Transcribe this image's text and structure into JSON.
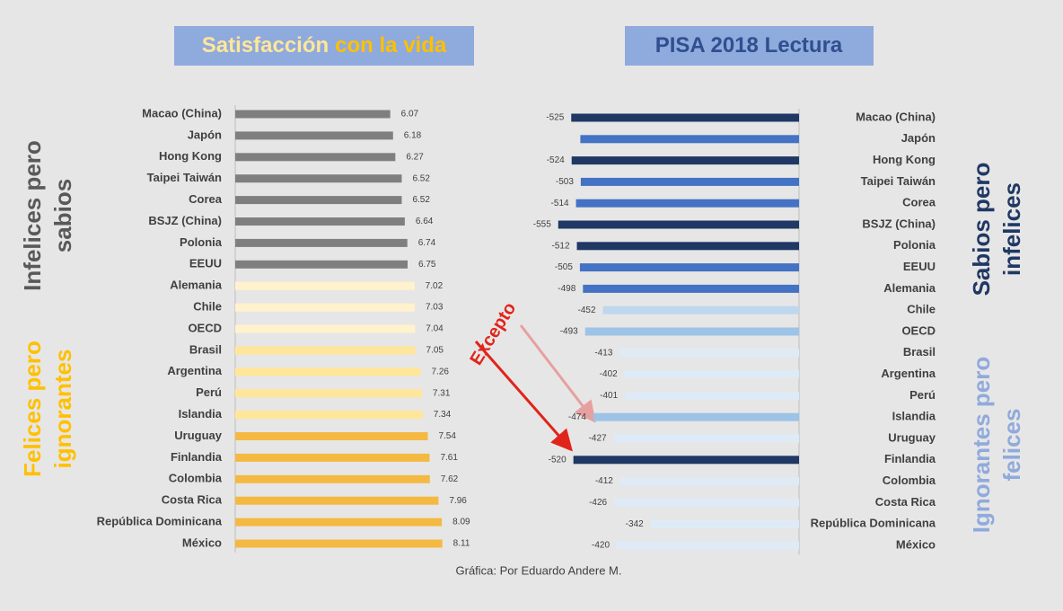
{
  "chart_data": [
    {
      "type": "bar",
      "orientation": "horizontal",
      "title_parts": [
        {
          "text": "Satisfacción",
          "color": "#ffe699"
        },
        {
          "text": "con la vida",
          "color": "#ffc000"
        }
      ],
      "categories": [
        "Macao (China)",
        "Japón",
        "Hong Kong",
        "Taipei Taiwán",
        "Corea",
        "BSJZ (China)",
        "Polonia",
        "EEUU",
        "Alemania",
        "Chile",
        "OECD",
        "Brasil",
        "Argentina",
        "Perú",
        "Islandia",
        "Uruguay",
        "Finlandia",
        "Colombia",
        "Costa Rica",
        "República Dominicana",
        "México"
      ],
      "values": [
        6.07,
        6.18,
        6.27,
        6.52,
        6.52,
        6.64,
        6.74,
        6.75,
        7.02,
        7.03,
        7.04,
        7.05,
        7.26,
        7.31,
        7.34,
        7.54,
        7.61,
        7.62,
        7.96,
        8.09,
        8.11
      ],
      "value_labels": [
        "6.07",
        "6.18",
        "6.27",
        "6.52",
        "6.52",
        "6.64",
        "6.74",
        "6.75",
        "7.02",
        "7.03",
        "7.04",
        "7.05",
        "7.26",
        "7.31",
        "7.34",
        "7.54",
        "7.61",
        "7.62",
        "7.96",
        "8.09",
        "8.11"
      ],
      "colors": [
        "#7f7f7f",
        "#7f7f7f",
        "#7f7f7f",
        "#7f7f7f",
        "#7f7f7f",
        "#7f7f7f",
        "#7f7f7f",
        "#7f7f7f",
        "#fff2cc",
        "#fff2cc",
        "#fff2cc",
        "#ffe699",
        "#ffe699",
        "#ffe699",
        "#ffe699",
        "#f4b942",
        "#f4b942",
        "#f4b942",
        "#f4b942",
        "#f4b942",
        "#f4b942"
      ],
      "xlim": [
        0,
        9
      ],
      "annotations": [
        {
          "lines": [
            "Infelices pero",
            "sabios"
          ],
          "color": "#595959"
        },
        {
          "lines": [
            "Felices pero",
            "ignorantes"
          ],
          "color": "#ffc000"
        }
      ]
    },
    {
      "type": "bar",
      "orientation": "horizontal",
      "title_parts": [
        {
          "text": "PISA 2018 Lectura",
          "color": "#2f4f8f"
        }
      ],
      "categories": [
        "Macao (China)",
        "Japón",
        "Hong Kong",
        "Taipei Taiwán",
        "Corea",
        "BSJZ (China)",
        "Polonia",
        "EEUU",
        "Alemania",
        "Chile",
        "OECD",
        "Brasil",
        "Argentina",
        "Perú",
        "Islandia",
        "Uruguay",
        "Finlandia",
        "Colombia",
        "Costa Rica",
        "República Dominicana",
        "México"
      ],
      "values": [
        -525,
        -504,
        -524,
        -503,
        -514,
        -555,
        -512,
        -505,
        -498,
        -452,
        -493,
        -413,
        -402,
        -401,
        -474,
        -427,
        -520,
        -412,
        -426,
        -342,
        -420
      ],
      "value_labels": [
        "-525",
        null,
        "-524",
        "-503",
        "-514",
        "-555",
        "-512",
        "-505",
        "-498",
        "-452",
        "-493",
        "-413",
        "-402",
        "-401",
        "-474",
        "-427",
        "-520",
        "-412",
        "-426",
        "-342",
        "-420"
      ],
      "colors": [
        "#1f3864",
        "#4472c4",
        "#1f3864",
        "#4472c4",
        "#4472c4",
        "#1f3864",
        "#1f3864",
        "#4472c4",
        "#4472c4",
        "#bdd7ee",
        "#9dc3e6",
        "#deebf7",
        "#deebf7",
        "#deebf7",
        "#9dc3e6",
        "#deebf7",
        "#1f3864",
        "#deebf7",
        "#deebf7",
        "#deebf7",
        "#deebf7"
      ],
      "xlim": [
        -600,
        0
      ],
      "annotations": [
        {
          "lines": [
            "Sabios pero",
            "infelices"
          ],
          "color": "#1f3864"
        },
        {
          "lines": [
            "Ignorantes pero",
            "felices"
          ],
          "color": "#8faadc"
        }
      ],
      "callout": "Excepto"
    }
  ],
  "source": "Gráfica: Por Eduardo Andere M."
}
